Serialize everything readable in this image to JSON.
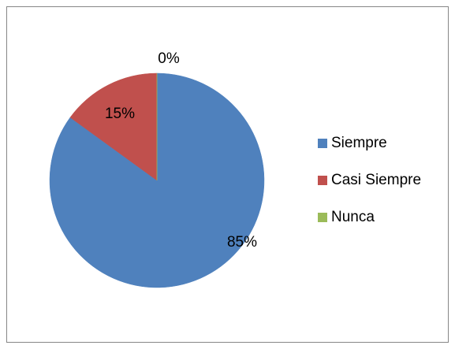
{
  "chart_data": {
    "type": "pie",
    "categories": [
      "Siempre",
      "Casi Siempre",
      "Nunca"
    ],
    "values": [
      85,
      15,
      0
    ],
    "value_labels": [
      "85%",
      "15%",
      "0%"
    ],
    "colors": [
      "#4f81bd",
      "#c0504d",
      "#9bbb59"
    ],
    "legend": "right"
  }
}
